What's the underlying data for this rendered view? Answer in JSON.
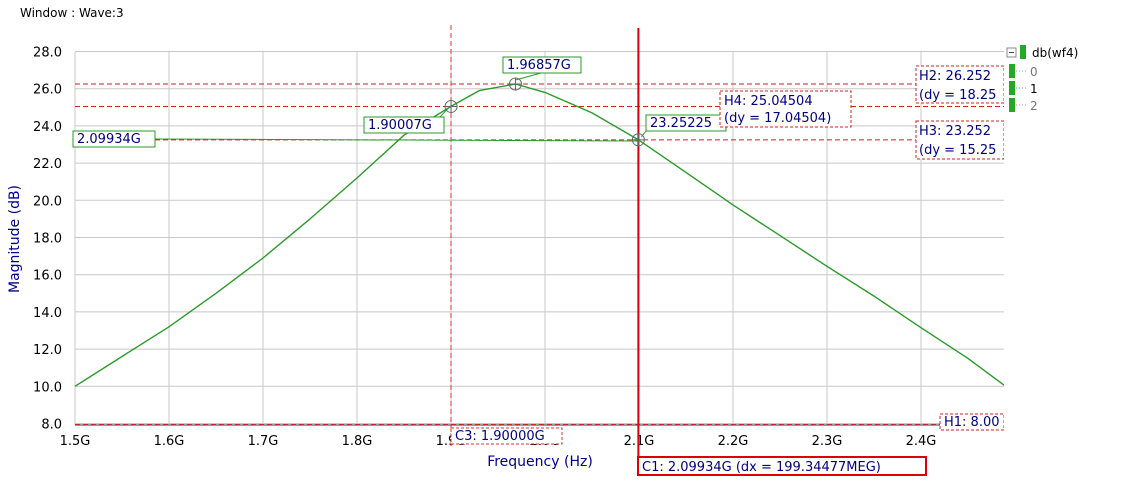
{
  "window_title": "Window : Wave:3",
  "legend": {
    "title": "db(wf4)",
    "items": [
      "0",
      "1",
      "2"
    ],
    "color": "#22aa22"
  },
  "colors": {
    "curve": "#2a9a2a",
    "marker_h": "#cc2222",
    "marker_v_thin": "#dd3333",
    "marker_v_main": "#dd0000",
    "label_text": "#000080",
    "point_label_border": "#2a9a2a"
  },
  "markers": {
    "c3_label": "C3: 1.90000G",
    "c1_label": "C1: 2.09934G (dx = 199.34477MEG)",
    "h1_label": "H1: 8.00",
    "h2_label": "H2: 26.252",
    "h2_dy": "(dy = 18.25",
    "h3_label": "H3: 23.252",
    "h3_dy": "(dy = 15.25",
    "h4_label": "H4: 25.04504",
    "h4_dy": "(dy = 17.04504)",
    "peak_label": "1.96857G",
    "left_label": "1.90007G",
    "right_label": "23.25225",
    "hline_label": "2.09934G"
  },
  "marker_values": {
    "c3_x": 1.9,
    "c1_x": 2.09934,
    "h1_y": 8.0,
    "h2_y": 26.252,
    "h3_y": 23.252,
    "h4_y": 25.04504,
    "peak": [
      1.96857,
      26.252
    ],
    "left_point": [
      1.90007,
      25.04504
    ],
    "right_point": [
      2.09934,
      23.25225
    ]
  },
  "chart_data": {
    "type": "line",
    "title": "",
    "xlabel": "Frequency (Hz)",
    "ylabel": "Magnitude (dB)",
    "xlim": [
      1.5,
      2.5
    ],
    "ylim": [
      7.8,
      28.8
    ],
    "x_ticks": [
      "1.5G",
      "1.6G",
      "1.7G",
      "1.8G",
      "1.9G",
      "2.0G",
      "2.1G",
      "2.2G",
      "2.3G",
      "2.4G"
    ],
    "y_ticks": [
      "8.0",
      "10.0",
      "12.0",
      "14.0",
      "16.0",
      "18.0",
      "20.0",
      "22.0",
      "24.0",
      "26.0",
      "28.0"
    ],
    "grid": true,
    "series": [
      {
        "name": "db(wf4)",
        "x": [
          1.5,
          1.55,
          1.6,
          1.65,
          1.7,
          1.75,
          1.8,
          1.85,
          1.9,
          1.93,
          1.96857,
          2.0,
          2.05,
          2.09934,
          2.15,
          2.2,
          2.25,
          2.3,
          2.35,
          2.4,
          2.45,
          2.49
        ],
        "y": [
          10.0,
          11.6,
          13.2,
          15.0,
          16.9,
          19.0,
          21.2,
          23.5,
          25.05,
          25.9,
          26.25,
          25.8,
          24.7,
          23.25,
          21.5,
          19.75,
          18.1,
          16.45,
          14.85,
          13.15,
          11.5,
          10.0
        ]
      }
    ]
  }
}
